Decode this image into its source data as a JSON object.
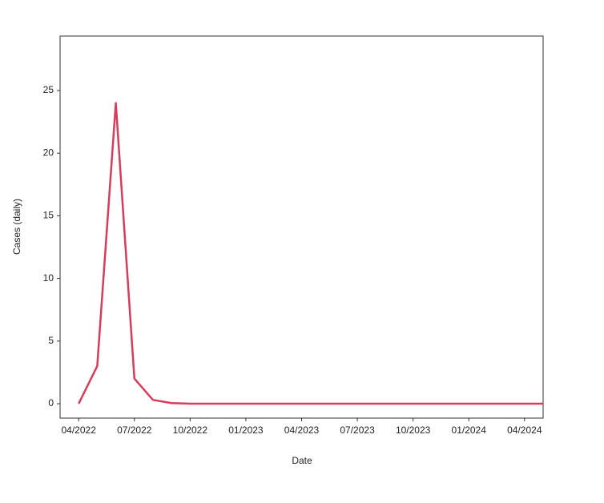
{
  "chart_data": {
    "type": "line",
    "x_label": "Date",
    "y_label": "Cases (daily)",
    "x": [
      "2022-04",
      "2022-05",
      "2022-06",
      "2022-07",
      "2022-08",
      "2022-09",
      "2022-10",
      "2022-11",
      "2022-12",
      "2023-01",
      "2023-02",
      "2023-03",
      "2023-04",
      "2023-05",
      "2023-06",
      "2023-07",
      "2023-08",
      "2023-09",
      "2023-10",
      "2023-11",
      "2023-12",
      "2024-01",
      "2024-02",
      "2024-03",
      "2024-04",
      "2024-05"
    ],
    "series": [
      {
        "name": "Cases (daily)",
        "color": "#d43d5b",
        "values": [
          0,
          3,
          24,
          2,
          0.3,
          0.05,
          0,
          0,
          0,
          0,
          0,
          0,
          0,
          0,
          0,
          0,
          0,
          0,
          0,
          0,
          0,
          0,
          0,
          0,
          0,
          0
        ]
      }
    ],
    "xlim": [
      "2022-03",
      "2024-05"
    ],
    "xticks": [
      {
        "value": "2022-04",
        "label": "04/2022"
      },
      {
        "value": "2022-07",
        "label": "07/2022"
      },
      {
        "value": "2022-10",
        "label": "10/2022"
      },
      {
        "value": "2023-01",
        "label": "01/2023"
      },
      {
        "value": "2023-04",
        "label": "04/2023"
      },
      {
        "value": "2023-07",
        "label": "07/2023"
      },
      {
        "value": "2023-10",
        "label": "10/2023"
      },
      {
        "value": "2024-01",
        "label": "01/2024"
      },
      {
        "value": "2024-04",
        "label": "04/2024"
      }
    ],
    "ylim": [
      -1.15,
      29.35
    ],
    "yticks": [
      0,
      5,
      10,
      15,
      20,
      25
    ]
  }
}
